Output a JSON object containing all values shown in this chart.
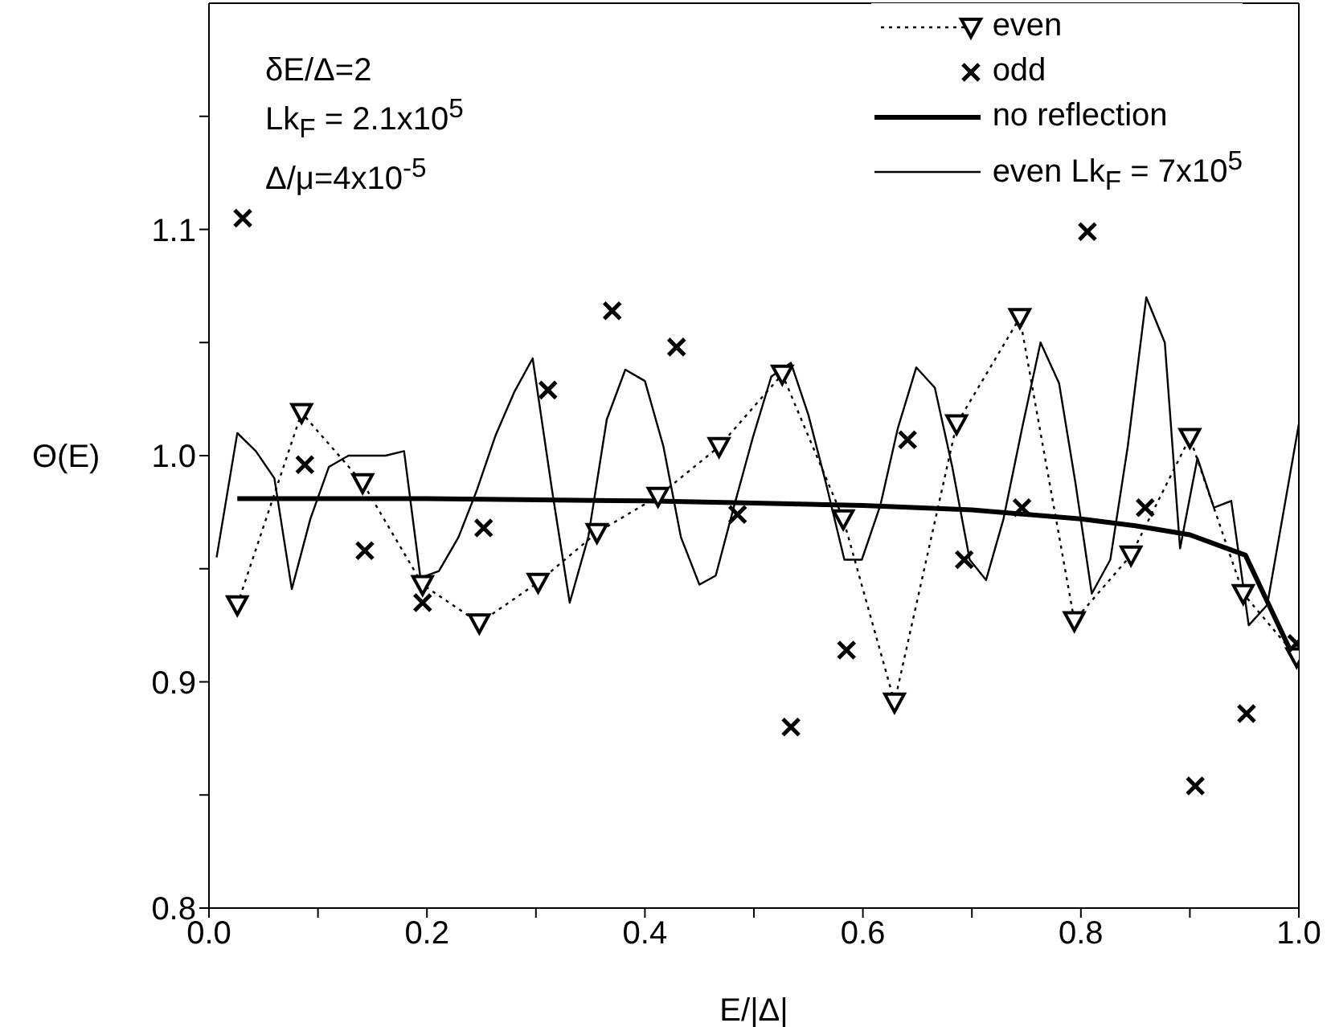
{
  "chart_data": {
    "type": "line",
    "xlabel": "E/|Δ|",
    "ylabel": "Θ(E)",
    "xlim": [
      0,
      1
    ],
    "ylim": [
      0.8,
      1.2
    ],
    "xticks": [
      {
        "value": 0,
        "label": "0.0"
      },
      {
        "value": 0.1,
        "label": null
      },
      {
        "value": 0.2,
        "label": "0.2"
      },
      {
        "value": 0.3,
        "label": null
      },
      {
        "value": 0.4,
        "label": "0.4"
      },
      {
        "value": 0.5,
        "label": null
      },
      {
        "value": 0.6,
        "label": "0.6"
      },
      {
        "value": 0.7,
        "label": null
      },
      {
        "value": 0.8,
        "label": "0.8"
      },
      {
        "value": 0.9,
        "label": null
      },
      {
        "value": 1,
        "label": "1.0"
      }
    ],
    "yticks": [
      {
        "value": 0.8,
        "label": "0.8"
      },
      {
        "value": 0.85,
        "label": null
      },
      {
        "value": 0.9,
        "label": "0.9"
      },
      {
        "value": 0.95,
        "label": null
      },
      {
        "value": 1,
        "label": "1.0"
      },
      {
        "value": 1.05,
        "label": null
      },
      {
        "value": 1.1,
        "label": "1.1"
      },
      {
        "value": 1.15,
        "label": null
      }
    ],
    "legend": "top right",
    "annotations": [
      "δE/Δ=2",
      "Lk$_{F}$ = 2.1x10$^{5}$",
      "Δ/μ=4x10$^{-5}$"
    ],
    "series": [
      {
        "name": "even",
        "color": "#000000",
        "marker": "triangle",
        "line_style": "dotted",
        "x": [
          0.026,
          0.085,
          0.141,
          0.196,
          0.248,
          0.302,
          0.356,
          0.412,
          0.468,
          0.526,
          0.582,
          0.629,
          0.686,
          0.744,
          0.794,
          0.846,
          0.9,
          0.949,
          0.998
        ],
        "values": [
          0.934,
          1.019,
          0.988,
          0.943,
          0.926,
          0.944,
          0.966,
          0.982,
          1.004,
          1.036,
          0.972,
          0.891,
          1.014,
          1.061,
          0.927,
          0.956,
          1.008,
          0.939,
          0.911
        ]
      },
      {
        "name": "odd",
        "type": "scatter",
        "color": "#000000",
        "marker": "cross",
        "x": [
          0.031,
          0.088,
          0.143,
          0.196,
          0.252,
          0.311,
          0.37,
          0.429,
          0.485,
          0.534,
          0.585,
          0.641,
          0.693,
          0.746,
          0.806,
          0.859,
          0.905,
          0.952,
          0.998
        ],
        "values": [
          1.105,
          0.996,
          0.958,
          0.935,
          0.968,
          1.029,
          1.064,
          1.048,
          0.974,
          0.88,
          0.914,
          1.007,
          0.954,
          0.977,
          1.099,
          0.977,
          0.854,
          0.886,
          0.917
        ]
      },
      {
        "name": "no reflection",
        "color": "#000000",
        "marker": "none",
        "line_style": "solid",
        "x": [
          0.026,
          0.2,
          0.4,
          0.5,
          0.6,
          0.7,
          0.8,
          0.85,
          0.9,
          0.951,
          0.998
        ],
        "values": [
          0.981,
          0.981,
          0.98,
          0.979,
          0.978,
          0.976,
          0.972,
          0.969,
          0.965,
          0.956,
          0.908
        ]
      },
      {
        "name": "even Lk$_{F}$ = 7x10$^{5}$",
        "color": "#000000",
        "marker": "none",
        "line_style": "solid",
        "x": [
          0.007,
          0.026,
          0.043,
          0.06,
          0.076,
          0.093,
          0.11,
          0.128,
          0.145,
          0.162,
          0.179,
          0.194,
          0.211,
          0.229,
          0.246,
          0.263,
          0.28,
          0.297,
          0.315,
          0.331,
          0.348,
          0.365,
          0.382,
          0.4,
          0.417,
          0.433,
          0.45,
          0.465,
          0.482,
          0.499,
          0.516,
          0.534,
          0.55,
          0.566,
          0.583,
          0.599,
          0.616,
          0.632,
          0.649,
          0.666,
          0.682,
          0.698,
          0.713,
          0.729,
          0.746,
          0.763,
          0.78,
          0.795,
          0.81,
          0.827,
          0.843,
          0.86,
          0.877,
          0.891,
          0.907,
          0.922,
          0.938,
          0.954,
          0.971,
          1.0
        ],
        "values": [
          0.955,
          1.01,
          1.002,
          0.99,
          0.941,
          0.972,
          0.995,
          1.0,
          1.0,
          1.0,
          1.002,
          0.946,
          0.949,
          0.964,
          0.985,
          1.009,
          1.028,
          1.043,
          0.984,
          0.935,
          0.964,
          1.016,
          1.038,
          1.033,
          1.004,
          0.964,
          0.943,
          0.947,
          0.978,
          1.008,
          1.035,
          1.041,
          1.018,
          0.988,
          0.954,
          0.954,
          0.978,
          1.012,
          1.039,
          1.03,
          0.995,
          0.954,
          0.945,
          0.972,
          1.012,
          1.05,
          1.032,
          0.988,
          0.939,
          0.954,
          1.004,
          1.07,
          1.05,
          0.959,
          0.999,
          0.977,
          0.98,
          0.925,
          0.934,
          1.014
        ]
      }
    ]
  }
}
